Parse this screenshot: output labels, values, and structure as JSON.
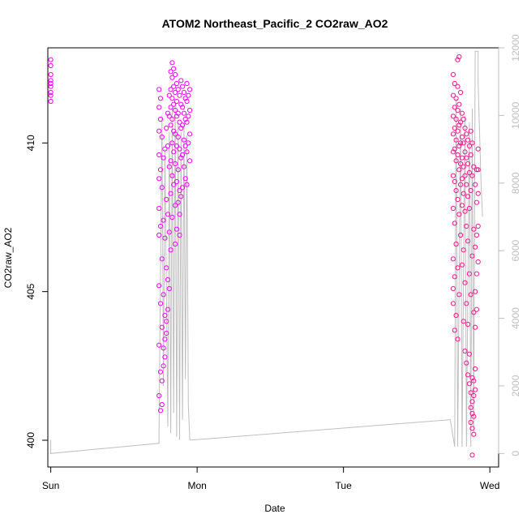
{
  "chart_data": {
    "type": "scatter",
    "title": "ATOM2 Northeast_Pacific_2 CO2raw_AO2",
    "xlabel": "Date",
    "ylabel": "CO2raw_AO2",
    "x_ticks": [
      "Sun",
      "Mon",
      "Tue",
      "Wed"
    ],
    "x_tick_values": [
      0,
      1,
      2,
      3
    ],
    "xlim": [
      -0.02,
      3.06
    ],
    "ylim": [
      399.1,
      413.2
    ],
    "y_ticks": [
      400,
      405,
      410
    ],
    "y2_ticks": [
      0,
      2000,
      4000,
      6000,
      8000,
      10000,
      12000
    ],
    "y2lim": [
      -400,
      12000
    ],
    "grid": false,
    "colors": {
      "early_points": "#ff00ff",
      "late_points": "#ff1493",
      "altitude_line": "#bebebe",
      "axis": "#000000",
      "right_axis": "#bebebe"
    },
    "series": [
      {
        "marker": "open-circle",
        "axis": "left",
        "color": "#ff00ff",
        "points": [
          [
            0.0,
            412.8
          ],
          [
            0.0,
            412.6
          ],
          [
            0.0,
            412.3
          ],
          [
            0.0,
            412.1
          ],
          [
            0.0,
            411.9
          ],
          [
            0.0,
            411.6
          ],
          [
            0.0,
            411.4
          ],
          [
            0.0,
            412.0
          ],
          [
            0.0,
            411.7
          ],
          [
            0.74,
            411.8
          ],
          [
            0.74,
            411.2
          ],
          [
            0.74,
            410.4
          ],
          [
            0.74,
            409.6
          ],
          [
            0.74,
            408.8
          ],
          [
            0.74,
            407.8
          ],
          [
            0.74,
            406.9
          ],
          [
            0.74,
            405.2
          ],
          [
            0.74,
            403.2
          ],
          [
            0.74,
            401.5
          ],
          [
            0.75,
            411.5
          ],
          [
            0.75,
            410.8
          ],
          [
            0.75,
            409.1
          ],
          [
            0.75,
            407.2
          ],
          [
            0.75,
            404.6
          ],
          [
            0.75,
            402.3
          ],
          [
            0.75,
            401.0
          ],
          [
            0.76,
            410.2
          ],
          [
            0.76,
            408.5
          ],
          [
            0.76,
            406.1
          ],
          [
            0.76,
            403.8
          ],
          [
            0.76,
            402.0
          ],
          [
            0.76,
            401.2
          ],
          [
            0.77,
            409.5
          ],
          [
            0.77,
            407.4
          ],
          [
            0.77,
            404.9
          ],
          [
            0.77,
            403.1
          ],
          [
            0.77,
            402.5
          ],
          [
            0.78,
            409.8
          ],
          [
            0.78,
            406.8
          ],
          [
            0.78,
            404.2
          ],
          [
            0.78,
            403.4
          ],
          [
            0.78,
            402.8
          ],
          [
            0.79,
            410.5
          ],
          [
            0.79,
            408.1
          ],
          [
            0.79,
            405.8
          ],
          [
            0.79,
            404.0
          ],
          [
            0.79,
            403.6
          ],
          [
            0.8,
            411.0
          ],
          [
            0.8,
            409.9
          ],
          [
            0.8,
            407.6
          ],
          [
            0.8,
            405.4
          ],
          [
            0.8,
            404.4
          ],
          [
            0.81,
            411.6
          ],
          [
            0.81,
            410.9
          ],
          [
            0.81,
            409.2
          ],
          [
            0.81,
            407.0
          ],
          [
            0.81,
            405.1
          ],
          [
            0.82,
            412.4
          ],
          [
            0.82,
            411.8
          ],
          [
            0.82,
            411.2
          ],
          [
            0.82,
            410.6
          ],
          [
            0.82,
            409.4
          ],
          [
            0.82,
            408.3
          ],
          [
            0.82,
            406.4
          ],
          [
            0.83,
            412.7
          ],
          [
            0.83,
            412.2
          ],
          [
            0.83,
            411.5
          ],
          [
            0.83,
            410.8
          ],
          [
            0.83,
            410.0
          ],
          [
            0.83,
            408.9
          ],
          [
            0.83,
            407.5
          ],
          [
            0.84,
            412.5
          ],
          [
            0.84,
            411.9
          ],
          [
            0.84,
            411.3
          ],
          [
            0.84,
            410.4
          ],
          [
            0.84,
            409.7
          ],
          [
            0.84,
            408.6
          ],
          [
            0.85,
            412.3
          ],
          [
            0.85,
            411.7
          ],
          [
            0.85,
            411.1
          ],
          [
            0.85,
            410.3
          ],
          [
            0.85,
            409.3
          ],
          [
            0.85,
            407.9
          ],
          [
            0.85,
            406.6
          ],
          [
            0.86,
            412.0
          ],
          [
            0.86,
            411.4
          ],
          [
            0.86,
            410.9
          ],
          [
            0.86,
            409.9
          ],
          [
            0.86,
            408.7
          ],
          [
            0.86,
            407.1
          ],
          [
            0.87,
            411.8
          ],
          [
            0.87,
            411.0
          ],
          [
            0.87,
            410.2
          ],
          [
            0.87,
            409.1
          ],
          [
            0.87,
            408.0
          ],
          [
            0.88,
            411.6
          ],
          [
            0.88,
            410.7
          ],
          [
            0.88,
            409.8
          ],
          [
            0.88,
            408.4
          ],
          [
            0.88,
            407.6
          ],
          [
            0.88,
            406.9
          ],
          [
            0.89,
            412.1
          ],
          [
            0.89,
            411.3
          ],
          [
            0.89,
            410.5
          ],
          [
            0.89,
            409.5
          ],
          [
            0.89,
            408.2
          ],
          [
            0.9,
            411.9
          ],
          [
            0.9,
            411.2
          ],
          [
            0.9,
            410.6
          ],
          [
            0.9,
            409.6
          ],
          [
            0.9,
            408.5
          ],
          [
            0.91,
            411.7
          ],
          [
            0.91,
            411.0
          ],
          [
            0.91,
            410.1
          ],
          [
            0.91,
            409.2
          ],
          [
            0.92,
            411.5
          ],
          [
            0.92,
            410.8
          ],
          [
            0.92,
            409.9
          ],
          [
            0.92,
            408.8
          ],
          [
            0.93,
            412.0
          ],
          [
            0.93,
            411.4
          ],
          [
            0.93,
            410.7
          ],
          [
            0.93,
            409.7
          ],
          [
            0.93,
            408.6
          ],
          [
            0.94,
            411.6
          ],
          [
            0.94,
            410.9
          ],
          [
            0.94,
            410.0
          ],
          [
            0.95,
            411.8
          ],
          [
            0.95,
            411.1
          ],
          [
            0.95,
            410.3
          ],
          [
            0.95,
            409.4
          ]
        ]
      },
      {
        "marker": "open-circle",
        "axis": "left",
        "color": "#ff1493",
        "points": [
          [
            2.75,
            412.3
          ],
          [
            2.75,
            411.6
          ],
          [
            2.75,
            410.9
          ],
          [
            2.75,
            410.3
          ],
          [
            2.75,
            409.7
          ],
          [
            2.75,
            408.9
          ],
          [
            2.75,
            407.8
          ],
          [
            2.75,
            406.1
          ],
          [
            2.75,
            405.1
          ],
          [
            2.75,
            404.6
          ],
          [
            2.76,
            412.0
          ],
          [
            2.76,
            411.2
          ],
          [
            2.76,
            410.5
          ],
          [
            2.76,
            409.8
          ],
          [
            2.76,
            408.7
          ],
          [
            2.76,
            407.3
          ],
          [
            2.76,
            405.5
          ],
          [
            2.76,
            403.7
          ],
          [
            2.77,
            411.5
          ],
          [
            2.77,
            410.8
          ],
          [
            2.77,
            410.1
          ],
          [
            2.77,
            409.4
          ],
          [
            2.77,
            408.4
          ],
          [
            2.77,
            406.6
          ],
          [
            2.77,
            404.2
          ],
          [
            2.78,
            412.8
          ],
          [
            2.78,
            411.9
          ],
          [
            2.78,
            411.1
          ],
          [
            2.78,
            410.4
          ],
          [
            2.78,
            409.6
          ],
          [
            2.78,
            408.1
          ],
          [
            2.78,
            405.8
          ],
          [
            2.78,
            403.4
          ],
          [
            2.79,
            412.9
          ],
          [
            2.79,
            411.3
          ],
          [
            2.79,
            410.6
          ],
          [
            2.79,
            409.9
          ],
          [
            2.79,
            409.1
          ],
          [
            2.79,
            407.6
          ],
          [
            2.79,
            404.9
          ],
          [
            2.8,
            411.7
          ],
          [
            2.8,
            410.7
          ],
          [
            2.8,
            410.0
          ],
          [
            2.8,
            409.3
          ],
          [
            2.8,
            408.6
          ],
          [
            2.8,
            406.9
          ],
          [
            2.81,
            411.0
          ],
          [
            2.81,
            410.2
          ],
          [
            2.81,
            409.5
          ],
          [
            2.81,
            408.8
          ],
          [
            2.81,
            407.9
          ],
          [
            2.81,
            405.9
          ],
          [
            2.82,
            410.8
          ],
          [
            2.82,
            410.0
          ],
          [
            2.82,
            409.2
          ],
          [
            2.82,
            408.3
          ],
          [
            2.82,
            406.4
          ],
          [
            2.82,
            404.0
          ],
          [
            2.83,
            410.5
          ],
          [
            2.83,
            409.7
          ],
          [
            2.83,
            408.9
          ],
          [
            2.83,
            407.7
          ],
          [
            2.83,
            405.3
          ],
          [
            2.83,
            403.0
          ],
          [
            2.84,
            410.3
          ],
          [
            2.84,
            409.5
          ],
          [
            2.84,
            408.6
          ],
          [
            2.84,
            407.2
          ],
          [
            2.84,
            404.6
          ],
          [
            2.84,
            402.6
          ],
          [
            2.85,
            410.1
          ],
          [
            2.85,
            409.3
          ],
          [
            2.85,
            408.2
          ],
          [
            2.85,
            406.7
          ],
          [
            2.85,
            403.9
          ],
          [
            2.85,
            402.2
          ],
          [
            2.86,
            409.9
          ],
          [
            2.86,
            409.0
          ],
          [
            2.86,
            407.8
          ],
          [
            2.86,
            405.6
          ],
          [
            2.86,
            402.9
          ],
          [
            2.86,
            401.9
          ],
          [
            2.87,
            410.4
          ],
          [
            2.87,
            409.6
          ],
          [
            2.87,
            408.4
          ],
          [
            2.87,
            404.9
          ],
          [
            2.87,
            401.6
          ],
          [
            2.87,
            401.1
          ],
          [
            2.87,
            400.6
          ],
          [
            2.88,
            410.0
          ],
          [
            2.88,
            408.9
          ],
          [
            2.88,
            406.2
          ],
          [
            2.88,
            402.1
          ],
          [
            2.88,
            401.3
          ],
          [
            2.88,
            400.9
          ],
          [
            2.88,
            400.4
          ],
          [
            2.88,
            399.5
          ],
          [
            2.89,
            409.2
          ],
          [
            2.89,
            407.1
          ],
          [
            2.89,
            404.3
          ],
          [
            2.89,
            402.0
          ],
          [
            2.89,
            401.5
          ],
          [
            2.89,
            400.8
          ],
          [
            2.89,
            400.2
          ],
          [
            2.9,
            408.6
          ],
          [
            2.9,
            406.5
          ],
          [
            2.9,
            405.0
          ],
          [
            2.9,
            403.8
          ],
          [
            2.9,
            402.4
          ],
          [
            2.9,
            401.7
          ],
          [
            2.91,
            409.1
          ],
          [
            2.91,
            408.0
          ],
          [
            2.91,
            406.9
          ],
          [
            2.91,
            405.6
          ],
          [
            2.91,
            404.4
          ],
          [
            2.92,
            409.8
          ],
          [
            2.92,
            409.1
          ],
          [
            2.92,
            408.3
          ],
          [
            2.92,
            407.2
          ],
          [
            2.92,
            406.0
          ]
        ]
      }
    ],
    "altitude_line": {
      "axis": "right",
      "color": "#bebebe",
      "points": [
        [
          0.0,
          400
        ],
        [
          0.0,
          0
        ],
        [
          0.74,
          300
        ],
        [
          0.74,
          400
        ],
        [
          0.74,
          800
        ],
        [
          0.76,
          10000
        ],
        [
          0.77,
          2000
        ],
        [
          0.78,
          9000
        ],
        [
          0.8,
          800
        ],
        [
          0.81,
          9500
        ],
        [
          0.82,
          600
        ],
        [
          0.83,
          10200
        ],
        [
          0.84,
          1200
        ],
        [
          0.85,
          10400
        ],
        [
          0.86,
          500
        ],
        [
          0.87,
          9800
        ],
        [
          0.88,
          400
        ],
        [
          0.89,
          9500
        ],
        [
          0.9,
          1000
        ],
        [
          0.91,
          9800
        ],
        [
          0.92,
          2200
        ],
        [
          0.93,
          9400
        ],
        [
          0.94,
          1400
        ],
        [
          0.95,
          400
        ],
        [
          0.97,
          400
        ],
        [
          2.73,
          1000
        ],
        [
          2.76,
          200
        ],
        [
          2.77,
          10500
        ],
        [
          2.78,
          200
        ],
        [
          2.8,
          10200
        ],
        [
          2.81,
          200
        ],
        [
          2.83,
          10000
        ],
        [
          2.84,
          200
        ],
        [
          2.86,
          9800
        ],
        [
          2.87,
          200
        ],
        [
          2.88,
          10200
        ],
        [
          2.89,
          600
        ],
        [
          2.9,
          11900
        ],
        [
          2.92,
          11900
        ],
        [
          2.92,
          11000
        ],
        [
          2.94,
          8000
        ],
        [
          2.95,
          7000
        ]
      ]
    }
  }
}
